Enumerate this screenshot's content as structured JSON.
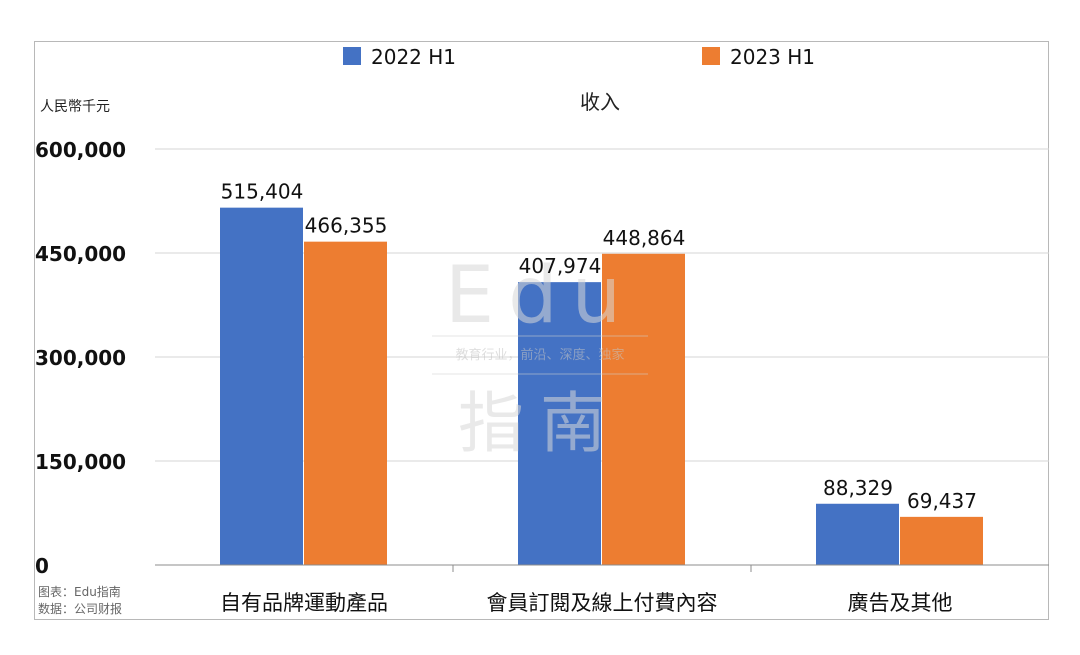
{
  "chart_data": {
    "type": "bar",
    "title": "收入",
    "ylabel": "人民幣千元",
    "categories": [
      "自有品牌運動產品",
      "會員訂閱及線上付費內容",
      "廣告及其他"
    ],
    "series": [
      {
        "name": "2022 H1",
        "values": [
          515404,
          407974,
          88329
        ],
        "labels": [
          "515,404",
          "407,974",
          "88,329"
        ],
        "color": "#4472c4"
      },
      {
        "name": "2023 H1",
        "values": [
          466355,
          448864,
          69437
        ],
        "labels": [
          "466,355",
          "448,864",
          "69,437"
        ],
        "color": "#ed7d31"
      }
    ],
    "ylim": [
      0,
      600000
    ],
    "yticks": [
      0,
      150000,
      300000,
      450000,
      600000
    ],
    "ytick_labels": [
      "0",
      "150,000",
      "300,000",
      "450,000",
      "600,000"
    ],
    "grid": true,
    "legend_position": "top"
  },
  "watermark": {
    "logo_text": "Edu",
    "logo_cn": "指南",
    "tagline": "教育行业，前沿、深度、独家"
  },
  "source": {
    "line1": "图表：Edu指南",
    "line2": "数据：公司财报"
  }
}
